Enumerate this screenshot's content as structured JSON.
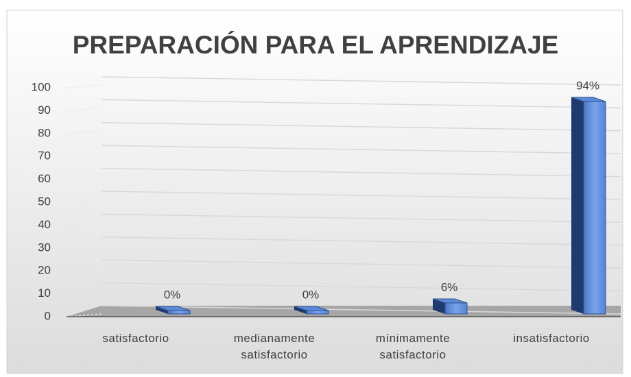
{
  "chart_data": {
    "type": "bar3d",
    "title": "PREPARACIÓN PARA EL APRENDIZAJE",
    "categories": [
      "satisfactorio",
      "medianamente satisfactorio",
      "mínimamente satisfactorio",
      "insatisfactorio"
    ],
    "values": [
      0,
      0,
      6,
      94
    ],
    "value_labels": [
      "0%",
      "0%",
      "6%",
      "94%"
    ],
    "color": "#4472c4",
    "ylim": [
      0,
      100
    ],
    "yticks": [
      0,
      10,
      20,
      30,
      40,
      50,
      60,
      70,
      80,
      90,
      100
    ],
    "grid": true
  }
}
